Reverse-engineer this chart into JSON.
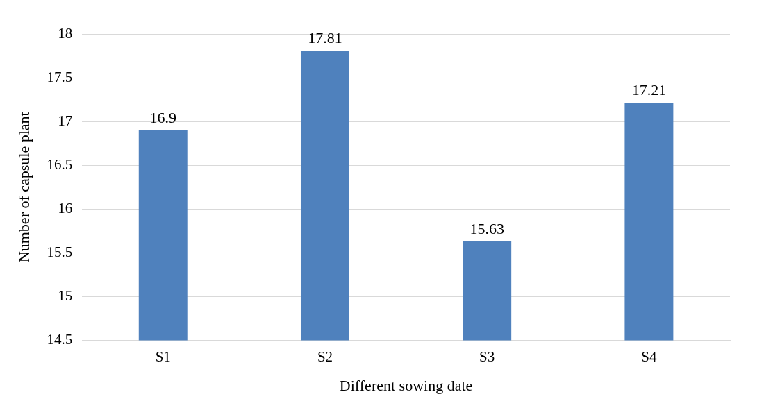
{
  "chart_data": {
    "type": "bar",
    "xlabel": "Different sowing date",
    "ylabel": "Number of capsule plant",
    "categories": [
      "S1",
      "S2",
      "S3",
      "S4"
    ],
    "values": [
      16.9,
      17.81,
      15.63,
      17.21
    ],
    "color": "#4f81bd",
    "ylim": [
      14.5,
      18
    ],
    "yticks": [
      14.5,
      15,
      15.5,
      16,
      16.5,
      17,
      17.5,
      18
    ],
    "grid": "y",
    "data_labels": true,
    "legend": false
  }
}
